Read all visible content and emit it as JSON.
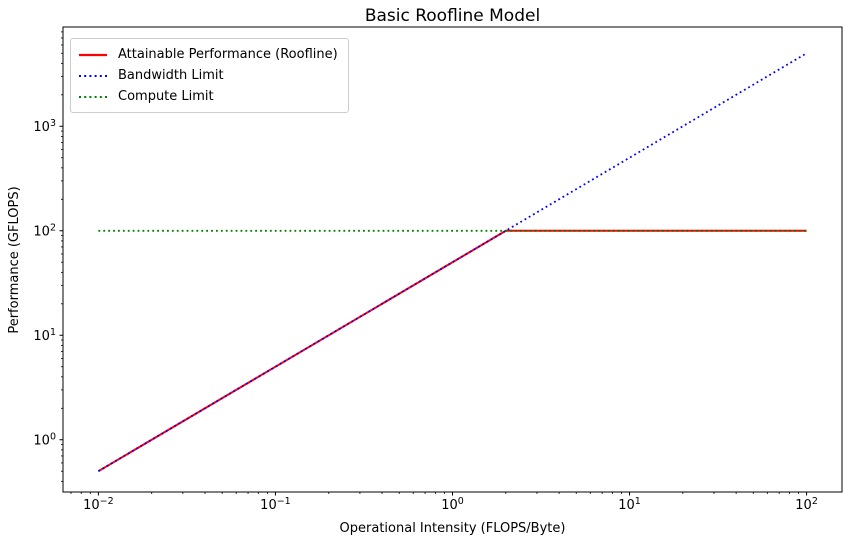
{
  "figure": {
    "background": "#ffffff",
    "frame_color": "#000000"
  },
  "chart_data": {
    "type": "line",
    "title": "Basic Roofline Model",
    "xlabel": "Operational Intensity (FLOPS/Byte)",
    "ylabel": "Performance (GFLOPS)",
    "x_scale": "log",
    "y_scale": "log",
    "xlim_exp": [
      -2.2,
      2.2
    ],
    "ylim_exp": [
      -0.5,
      3.95
    ],
    "x_tick_exponents": [
      -2,
      -1,
      0,
      1,
      2
    ],
    "y_tick_exponents": [
      0,
      1,
      2,
      3
    ],
    "grid": false,
    "legend_position": "upper-left",
    "series": [
      {
        "name": "Attainable Performance (Roofline)",
        "color": "#ff0000",
        "style": "solid",
        "x": [
          0.01,
          2,
          100
        ],
        "y": [
          0.5,
          100,
          100
        ]
      },
      {
        "name": "Bandwidth Limit",
        "color": "#0000ff",
        "style": "dotted",
        "x": [
          0.01,
          100
        ],
        "y": [
          0.5,
          5000
        ]
      },
      {
        "name": "Compute Limit",
        "color": "#008000",
        "style": "dotted",
        "x": [
          0.01,
          100
        ],
        "y": [
          100,
          100
        ]
      }
    ]
  }
}
